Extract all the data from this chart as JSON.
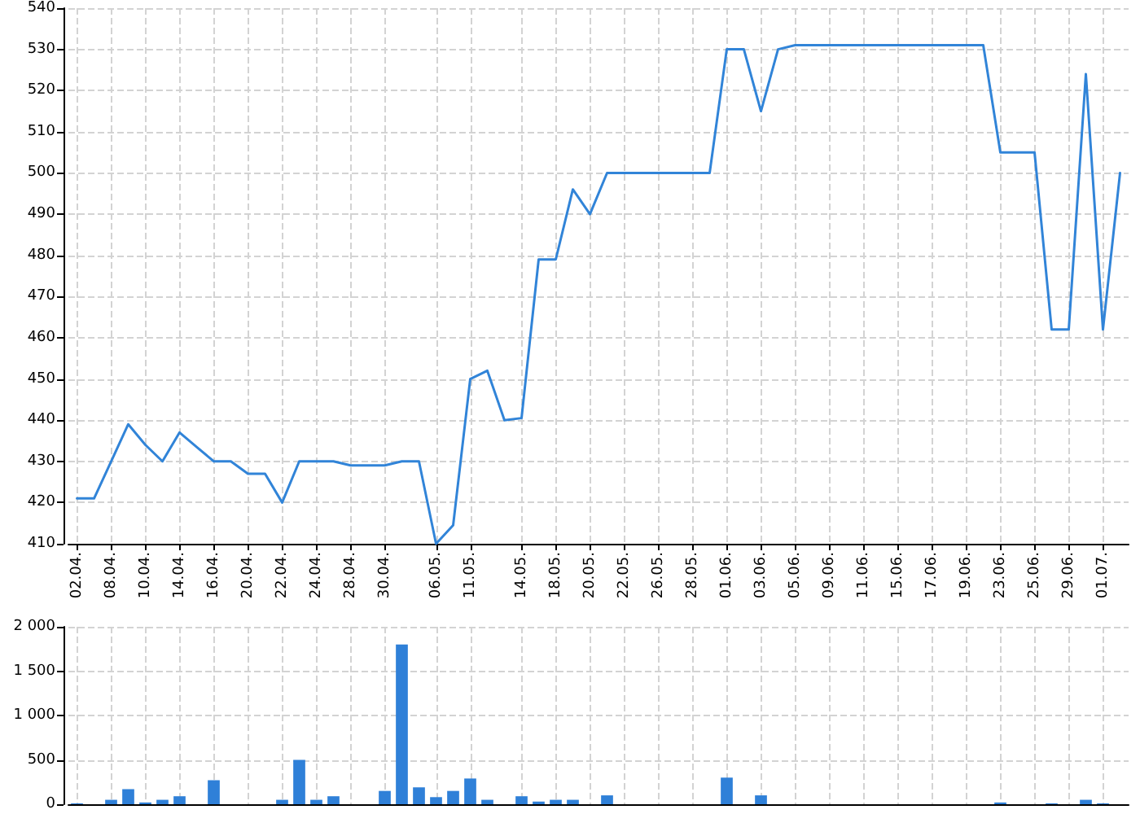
{
  "chart_data": [
    {
      "type": "line",
      "categories": [
        "02.04.",
        null,
        "08.04.",
        null,
        "10.04.",
        null,
        "14.04.",
        null,
        "16.04.",
        null,
        "20.04.",
        null,
        "22.04.",
        null,
        "24.04.",
        null,
        "28.04.",
        null,
        "30.04.",
        null,
        null,
        "06.05.",
        null,
        "11.05.",
        null,
        null,
        "14.05.",
        null,
        "18.05.",
        null,
        "20.05.",
        null,
        "22.05.",
        null,
        "26.05.",
        null,
        "28.05.",
        null,
        "01.06.",
        null,
        "03.06.",
        null,
        "05.06.",
        null,
        "09.06.",
        null,
        "11.06.",
        null,
        "15.06.",
        null,
        "17.06.",
        null,
        "19.06.",
        null,
        "23.06.",
        null,
        "25.06.",
        null,
        "29.06.",
        null,
        "01.07.",
        null
      ],
      "values": [
        421,
        421,
        430,
        439,
        434,
        430,
        437,
        433.5,
        430,
        430,
        427,
        427,
        420,
        430,
        430,
        430,
        429,
        429,
        429,
        430,
        430,
        410,
        414.5,
        450,
        452,
        440,
        440.5,
        479,
        479,
        496,
        490,
        500,
        500,
        500,
        500,
        500,
        500,
        500,
        530,
        530,
        515,
        530,
        531,
        531,
        531,
        531,
        531,
        531,
        531,
        531,
        531,
        531,
        531,
        531,
        505,
        505,
        505,
        462,
        462,
        524,
        462,
        500
      ],
      "color": "#3184d8",
      "ylim": [
        410,
        540
      ],
      "yticks": [
        410,
        420,
        430,
        440,
        450,
        460,
        470,
        480,
        490,
        500,
        510,
        520,
        530,
        540
      ],
      "grid": true,
      "marker": "none"
    },
    {
      "type": "bar",
      "categories": [
        "02.04.",
        null,
        "08.04.",
        null,
        "10.04.",
        null,
        "14.04.",
        null,
        "16.04.",
        null,
        "20.04.",
        null,
        "22.04.",
        null,
        "24.04.",
        null,
        "28.04.",
        null,
        "30.04.",
        null,
        null,
        "06.05.",
        null,
        "11.05.",
        null,
        null,
        "14.05.",
        null,
        "18.05.",
        null,
        "20.05.",
        null,
        "22.05.",
        null,
        "26.05.",
        null,
        "28.05.",
        null,
        "01.06.",
        null,
        "03.06.",
        null,
        "05.06.",
        null,
        "09.06.",
        null,
        "11.06.",
        null,
        "15.06.",
        null,
        "17.06.",
        null,
        "19.06.",
        null,
        "23.06.",
        null,
        "25.06.",
        null,
        "29.06.",
        null,
        "01.07.",
        null
      ],
      "values": [
        10,
        null,
        50,
        170,
        20,
        50,
        90,
        null,
        270,
        null,
        null,
        null,
        50,
        500,
        50,
        90,
        null,
        null,
        150,
        1800,
        190,
        80,
        150,
        290,
        50,
        null,
        90,
        30,
        50,
        50,
        null,
        100,
        null,
        null,
        null,
        null,
        null,
        null,
        300,
        null,
        100,
        null,
        null,
        null,
        null,
        null,
        null,
        null,
        null,
        null,
        null,
        null,
        null,
        null,
        20,
        null,
        null,
        10,
        null,
        50,
        10,
        null
      ],
      "color": "#2f80d8",
      "ylim": [
        0,
        2000
      ],
      "yticks": [
        0,
        500,
        {
          "value": 1000,
          "label": "1 000"
        },
        {
          "value": 1500,
          "label": "1 500"
        },
        {
          "value": 2000,
          "label": "2 000"
        }
      ],
      "grid": true,
      "tick_labels": "y"
    }
  ]
}
